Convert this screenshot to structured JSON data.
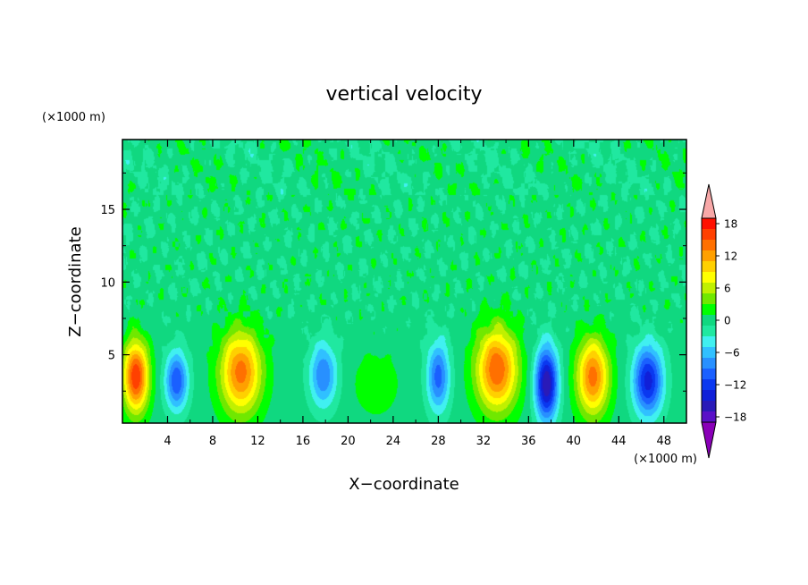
{
  "chart_data": {
    "type": "heatmap",
    "title": "vertical velocity",
    "xlabel": "X−coordinate",
    "ylabel": "Z−coordinate",
    "x_unit": "(×1000 m)",
    "y_unit": "(×1000 m)",
    "xlim": [
      0,
      50
    ],
    "ylim": [
      0.3,
      19.8
    ],
    "x_ticks": [
      4,
      8,
      12,
      16,
      20,
      24,
      28,
      32,
      36,
      40,
      44,
      48
    ],
    "x_tick_labels": [
      "4",
      "8",
      "12",
      "16",
      "20",
      "24",
      "28",
      "32",
      "36",
      "40",
      "44",
      "48"
    ],
    "y_ticks": [
      5,
      10,
      15
    ],
    "y_tick_labels": [
      "5",
      "10",
      "15"
    ],
    "colorbar": {
      "min": -21,
      "max": 21,
      "step": 2,
      "ticks": [
        18,
        12,
        6,
        0,
        -6,
        -12,
        -18
      ],
      "tick_labels": [
        "18",
        "12",
        "6",
        "0",
        "−6",
        "−12",
        "−18"
      ],
      "colors": [
        "#8a00b8",
        "#5a10c8",
        "#2a1ab8",
        "#1020d8",
        "#0a38f0",
        "#1a60ff",
        "#2890ff",
        "#30c0ff",
        "#40f0f0",
        "#20e8a0",
        "#10d880",
        "#00ff00",
        "#70e800",
        "#c0f000",
        "#ffff00",
        "#ffd000",
        "#ffa000",
        "#ff7000",
        "#ff4000",
        "#ff1000",
        "#f8a8a8"
      ]
    },
    "cells": [
      {
        "x": 1.2,
        "z": 3.5,
        "w": 17,
        "sx": 1.1,
        "sz": 2.4
      },
      {
        "x": 4.8,
        "z": 3.2,
        "w": -11,
        "sx": 1.0,
        "sz": 2.0
      },
      {
        "x": 10.5,
        "z": 3.8,
        "w": 14,
        "sx": 1.8,
        "sz": 2.8
      },
      {
        "x": 17.8,
        "z": 3.6,
        "w": -9,
        "sx": 1.2,
        "sz": 2.2
      },
      {
        "x": 22.5,
        "z": 3.0,
        "w": 3,
        "sx": 1.8,
        "sz": 2.0
      },
      {
        "x": 28.0,
        "z": 3.5,
        "w": -10,
        "sx": 1.0,
        "sz": 2.4
      },
      {
        "x": 33.2,
        "z": 4.0,
        "w": 15,
        "sx": 1.8,
        "sz": 2.8
      },
      {
        "x": 37.6,
        "z": 3.0,
        "w": -17,
        "sx": 1.0,
        "sz": 2.5
      },
      {
        "x": 41.7,
        "z": 3.5,
        "w": 14,
        "sx": 1.4,
        "sz": 2.6
      },
      {
        "x": 46.6,
        "z": 3.2,
        "w": -14,
        "sx": 1.3,
        "sz": 2.4
      }
    ]
  }
}
